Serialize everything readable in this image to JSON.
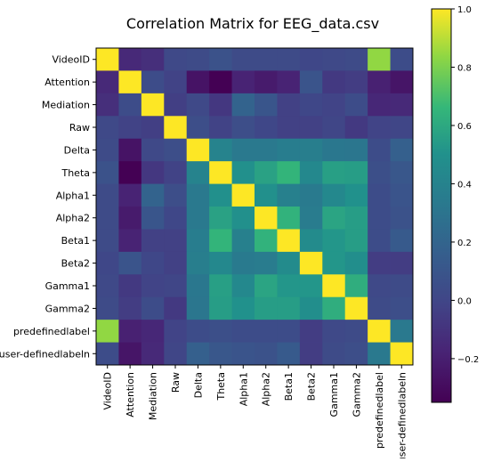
{
  "chart_data": {
    "type": "heatmap",
    "title": "Correlation Matrix for EEG_data.csv",
    "row_labels": [
      "VideoID",
      "Attention",
      "Mediation",
      "Raw",
      "Delta",
      "Theta",
      "Alpha1",
      "Alpha2",
      "Beta1",
      "Beta2",
      "Gamma1",
      "Gamma2",
      "predefinedlabel",
      "user-definedlabeln"
    ],
    "col_labels": [
      "VideoID",
      "Attention",
      "Mediation",
      "Raw",
      "Delta",
      "Theta",
      "Alpha1",
      "Alpha2",
      "Beta1",
      "Beta2",
      "Gamma1",
      "Gamma2",
      "predefinedlabel",
      "user-definedlabeln"
    ],
    "values": [
      [
        1.0,
        -0.15,
        -0.12,
        0.02,
        0.03,
        0.08,
        0.03,
        0.03,
        0.03,
        0.01,
        0.02,
        0.03,
        0.84,
        0.04
      ],
      [
        -0.15,
        1.0,
        0.04,
        -0.02,
        -0.26,
        -0.35,
        -0.18,
        -0.22,
        -0.18,
        0.09,
        -0.07,
        -0.05,
        -0.19,
        -0.25
      ],
      [
        -0.12,
        0.04,
        1.0,
        -0.04,
        0.02,
        -0.08,
        0.19,
        0.1,
        -0.03,
        0.01,
        -0.01,
        0.04,
        -0.16,
        -0.15
      ],
      [
        0.02,
        -0.02,
        -0.04,
        1.0,
        0.05,
        -0.02,
        0.05,
        0.01,
        -0.03,
        -0.03,
        0.0,
        -0.07,
        -0.01,
        0.0
      ],
      [
        0.03,
        -0.26,
        0.02,
        0.05,
        1.0,
        0.4,
        0.33,
        0.33,
        0.36,
        0.37,
        0.32,
        0.31,
        0.04,
        0.17
      ],
      [
        0.08,
        -0.35,
        -0.08,
        -0.02,
        0.4,
        1.0,
        0.49,
        0.57,
        0.65,
        0.44,
        0.56,
        0.55,
        0.06,
        0.11
      ],
      [
        0.03,
        -0.18,
        0.19,
        0.05,
        0.33,
        0.49,
        1.0,
        0.49,
        0.38,
        0.34,
        0.44,
        0.5,
        0.04,
        0.09
      ],
      [
        0.03,
        -0.22,
        0.1,
        0.01,
        0.33,
        0.57,
        0.49,
        1.0,
        0.64,
        0.35,
        0.58,
        0.55,
        0.04,
        0.08
      ],
      [
        0.03,
        -0.18,
        -0.03,
        -0.03,
        0.36,
        0.65,
        0.38,
        0.64,
        1.0,
        0.46,
        0.52,
        0.55,
        0.04,
        0.13
      ],
      [
        0.01,
        0.09,
        0.01,
        -0.03,
        0.37,
        0.44,
        0.34,
        0.35,
        0.46,
        1.0,
        0.52,
        0.48,
        -0.05,
        -0.05
      ],
      [
        0.02,
        -0.07,
        -0.01,
        0.0,
        0.32,
        0.56,
        0.44,
        0.58,
        0.52,
        0.52,
        1.0,
        0.62,
        0.02,
        0.03
      ],
      [
        0.03,
        -0.05,
        0.04,
        -0.07,
        0.31,
        0.55,
        0.5,
        0.55,
        0.55,
        0.48,
        0.62,
        1.0,
        0.03,
        0.05
      ],
      [
        0.84,
        -0.19,
        -0.16,
        -0.01,
        0.04,
        0.06,
        0.04,
        0.04,
        0.04,
        -0.05,
        0.02,
        0.03,
        1.0,
        0.33
      ],
      [
        0.04,
        -0.25,
        -0.15,
        0.0,
        0.17,
        0.11,
        0.09,
        0.08,
        0.13,
        -0.05,
        0.03,
        0.05,
        0.33,
        1.0
      ]
    ],
    "colormap": "viridis",
    "vmin": -0.35,
    "vmax": 1.0,
    "colorbar_ticks": [
      1.0,
      0.8,
      0.6,
      0.4,
      0.2,
      0.0,
      -0.2
    ],
    "colorbar_tick_labels": [
      "1.0",
      "0.8",
      "0.6",
      "0.4",
      "0.2",
      "0.0",
      "−0.2"
    ],
    "grid": false,
    "legend": "colorbar-right"
  }
}
